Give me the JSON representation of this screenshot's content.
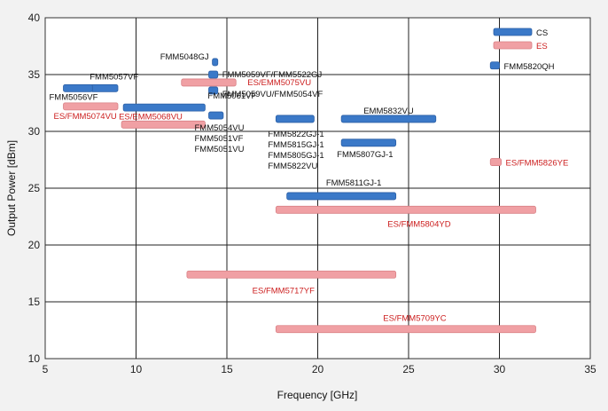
{
  "chart_data": {
    "type": "bar",
    "orientation": "horizontal-range",
    "xlabel": "Frequency  [GHz]",
    "ylabel": "Output Power  [dBm]",
    "xlim": [
      5,
      35
    ],
    "ylim": [
      10,
      40
    ],
    "xticks": [
      5,
      10,
      15,
      20,
      25,
      30,
      35
    ],
    "yticks": [
      10,
      15,
      20,
      25,
      30,
      35,
      40
    ],
    "grid": true,
    "legend_position": "top-right",
    "colors": {
      "CS": "#3b79c8",
      "ES": "#f0a0a4",
      "ES_label": "#cc1e1e"
    },
    "series": [
      {
        "name": "CS",
        "items": [
          {
            "label": "FMM5048GJ",
            "x": [
              14.2,
              14.5
            ],
            "y": 36.1
          },
          {
            "label": "FMM5059VF/FMM5522GJ",
            "x": [
              14.0,
              14.5
            ],
            "y": 35.0
          },
          {
            "label": "FMM5059VU/FMM5054VF",
            "x": [
              14.0,
              14.5
            ],
            "y": 33.6
          },
          {
            "label": "FMM5057VF",
            "x": [
              7.5,
              9.0
            ],
            "y": 33.8
          },
          {
            "label": "FMM5056VF",
            "x": [
              6.0,
              7.6
            ],
            "y": 33.8
          },
          {
            "label": "FMM5061VF",
            "x": [
              9.3,
              13.8
            ],
            "y": 32.1
          },
          {
            "label": "FMM5054VU FMM5051VF FMM5051VU",
            "x": [
              14.0,
              14.8
            ],
            "y": 31.4
          },
          {
            "label": "FMM5822GJ-1 FMM5815GJ-1 FMM5805GJ-1 FMM5822VU",
            "x": [
              17.7,
              19.8
            ],
            "y": 31.1
          },
          {
            "label": "EMM5832VU",
            "x": [
              21.3,
              26.5
            ],
            "y": 31.1
          },
          {
            "label": "FMM5807GJ-1",
            "x": [
              21.3,
              24.3
            ],
            "y": 29.0
          },
          {
            "label": "FMM5811GJ-1",
            "x": [
              18.3,
              24.3
            ],
            "y": 24.3
          },
          {
            "label": "FMM5820QH",
            "x": [
              29.5,
              30.0
            ],
            "y": 35.8
          }
        ]
      },
      {
        "name": "ES",
        "items": [
          {
            "label": "ES/EMM5075VU",
            "x": [
              12.5,
              15.5
            ],
            "y": 34.3
          },
          {
            "label": "ES/FMM5074VU",
            "x": [
              6.0,
              9.0
            ],
            "y": 32.2
          },
          {
            "label": "ES/EMM5068VU",
            "x": [
              9.2,
              13.8
            ],
            "y": 30.6
          },
          {
            "label": "ES/FMM5826YE",
            "x": [
              29.5,
              30.1
            ],
            "y": 27.3
          },
          {
            "label": "ES/FMM5804YD",
            "x": [
              17.7,
              32.0
            ],
            "y": 23.1
          },
          {
            "label": "ES/FMM5717YF",
            "x": [
              12.8,
              24.3
            ],
            "y": 17.4
          },
          {
            "label": "ES/FMM5709YC",
            "x": [
              17.7,
              32.0
            ],
            "y": 12.6
          }
        ]
      }
    ],
    "legend": [
      {
        "name": "CS",
        "label": "CS"
      },
      {
        "name": "ES",
        "label": "ES"
      }
    ]
  }
}
